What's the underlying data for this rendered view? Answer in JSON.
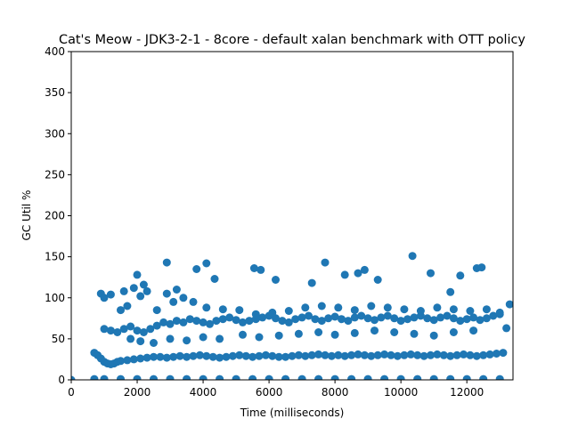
{
  "chart_data": {
    "type": "scatter",
    "title": "Cat's Meow - JDK3-2-1 - 8core -  default xalan benchmark with OTT policy",
    "xlabel": "Time (milliseconds)",
    "ylabel": "GC Util %",
    "xlim": [
      0,
      13400
    ],
    "ylim": [
      0,
      400
    ],
    "x_ticks": [
      0,
      2000,
      4000,
      6000,
      8000,
      10000,
      12000
    ],
    "y_ticks": [
      0,
      50,
      100,
      150,
      200,
      250,
      300,
      350,
      400
    ],
    "grid": false,
    "legend": "none",
    "color": "#1f77b4",
    "series": [
      {
        "points": [
          [
            0,
            0
          ],
          [
            700,
            33
          ],
          [
            800,
            30
          ],
          [
            900,
            26
          ],
          [
            1000,
            22
          ],
          [
            1100,
            20
          ],
          [
            1200,
            19
          ],
          [
            1300,
            20
          ],
          [
            1400,
            22
          ],
          [
            1500,
            23
          ],
          [
            1700,
            24
          ],
          [
            1900,
            25
          ],
          [
            2100,
            26
          ],
          [
            2300,
            27
          ],
          [
            2500,
            28
          ],
          [
            2700,
            28
          ],
          [
            2900,
            27
          ],
          [
            3100,
            28
          ],
          [
            3300,
            29
          ],
          [
            3500,
            28
          ],
          [
            3700,
            29
          ],
          [
            3900,
            30
          ],
          [
            4100,
            29
          ],
          [
            4300,
            28
          ],
          [
            4500,
            27
          ],
          [
            4700,
            28
          ],
          [
            4900,
            29
          ],
          [
            5100,
            30
          ],
          [
            5300,
            29
          ],
          [
            5500,
            28
          ],
          [
            5700,
            29
          ],
          [
            5900,
            30
          ],
          [
            6100,
            29
          ],
          [
            6300,
            28
          ],
          [
            6500,
            28
          ],
          [
            6700,
            29
          ],
          [
            6900,
            30
          ],
          [
            7100,
            29
          ],
          [
            7300,
            30
          ],
          [
            7500,
            31
          ],
          [
            7700,
            30
          ],
          [
            7900,
            29
          ],
          [
            8100,
            30
          ],
          [
            8300,
            29
          ],
          [
            8500,
            30
          ],
          [
            8700,
            31
          ],
          [
            8900,
            30
          ],
          [
            9100,
            29
          ],
          [
            9300,
            30
          ],
          [
            9500,
            31
          ],
          [
            9700,
            30
          ],
          [
            9900,
            29
          ],
          [
            10100,
            30
          ],
          [
            10300,
            31
          ],
          [
            10500,
            30
          ],
          [
            10700,
            29
          ],
          [
            10900,
            30
          ],
          [
            11100,
            31
          ],
          [
            11300,
            30
          ],
          [
            11500,
            29
          ],
          [
            11700,
            30
          ],
          [
            11900,
            31
          ],
          [
            12100,
            30
          ],
          [
            12300,
            29
          ],
          [
            12500,
            30
          ],
          [
            12700,
            31
          ],
          [
            12900,
            32
          ],
          [
            13100,
            33
          ],
          [
            1000,
            62
          ],
          [
            1200,
            60
          ],
          [
            1400,
            58
          ],
          [
            1600,
            62
          ],
          [
            1800,
            65
          ],
          [
            2000,
            60
          ],
          [
            2200,
            58
          ],
          [
            2400,
            62
          ],
          [
            2600,
            66
          ],
          [
            2800,
            70
          ],
          [
            3000,
            68
          ],
          [
            3200,
            72
          ],
          [
            3400,
            70
          ],
          [
            3600,
            74
          ],
          [
            3800,
            72
          ],
          [
            4000,
            70
          ],
          [
            4200,
            68
          ],
          [
            4400,
            72
          ],
          [
            4600,
            74
          ],
          [
            4800,
            76
          ],
          [
            5000,
            73
          ],
          [
            5200,
            70
          ],
          [
            5400,
            72
          ],
          [
            5600,
            74
          ],
          [
            5800,
            76
          ],
          [
            6000,
            78
          ],
          [
            6200,
            75
          ],
          [
            6400,
            72
          ],
          [
            6600,
            70
          ],
          [
            6800,
            74
          ],
          [
            7000,
            76
          ],
          [
            7200,
            78
          ],
          [
            7400,
            74
          ],
          [
            7600,
            72
          ],
          [
            7800,
            75
          ],
          [
            8000,
            77
          ],
          [
            8200,
            74
          ],
          [
            8400,
            72
          ],
          [
            8600,
            76
          ],
          [
            8800,
            78
          ],
          [
            9000,
            75
          ],
          [
            9200,
            73
          ],
          [
            9400,
            76
          ],
          [
            9600,
            78
          ],
          [
            9800,
            75
          ],
          [
            10000,
            72
          ],
          [
            10200,
            74
          ],
          [
            10400,
            76
          ],
          [
            10600,
            78
          ],
          [
            10800,
            75
          ],
          [
            11000,
            73
          ],
          [
            11200,
            76
          ],
          [
            11400,
            78
          ],
          [
            11600,
            75
          ],
          [
            11800,
            72
          ],
          [
            12000,
            74
          ],
          [
            12200,
            76
          ],
          [
            12400,
            73
          ],
          [
            12600,
            75
          ],
          [
            12800,
            78
          ],
          [
            13000,
            80
          ],
          [
            13300,
            92
          ],
          [
            1500,
            85
          ],
          [
            1700,
            90
          ],
          [
            2100,
            102
          ],
          [
            2300,
            108
          ],
          [
            2600,
            85
          ],
          [
            2900,
            105
          ],
          [
            3100,
            95
          ],
          [
            3400,
            100
          ],
          [
            3700,
            95
          ],
          [
            4100,
            88
          ],
          [
            4600,
            86
          ],
          [
            5100,
            85
          ],
          [
            5600,
            80
          ],
          [
            6100,
            82
          ],
          [
            6600,
            84
          ],
          [
            7100,
            88
          ],
          [
            7600,
            90
          ],
          [
            8100,
            88
          ],
          [
            8600,
            85
          ],
          [
            9100,
            90
          ],
          [
            9600,
            88
          ],
          [
            10100,
            86
          ],
          [
            10600,
            84
          ],
          [
            11100,
            88
          ],
          [
            11600,
            86
          ],
          [
            12100,
            84
          ],
          [
            12600,
            86
          ],
          [
            13000,
            82
          ],
          [
            900,
            105
          ],
          [
            1000,
            100
          ],
          [
            1200,
            104
          ],
          [
            1600,
            108
          ],
          [
            1900,
            112
          ],
          [
            2000,
            128
          ],
          [
            2200,
            116
          ],
          [
            2900,
            143
          ],
          [
            3200,
            110
          ],
          [
            3800,
            135
          ],
          [
            4100,
            142
          ],
          [
            4350,
            123
          ],
          [
            5550,
            136
          ],
          [
            5750,
            134
          ],
          [
            6200,
            122
          ],
          [
            7300,
            118
          ],
          [
            7700,
            143
          ],
          [
            8300,
            128
          ],
          [
            8700,
            130
          ],
          [
            8900,
            134
          ],
          [
            9300,
            122
          ],
          [
            10350,
            151
          ],
          [
            10900,
            130
          ],
          [
            11500,
            107
          ],
          [
            11800,
            127
          ],
          [
            12300,
            136
          ],
          [
            12450,
            137
          ],
          [
            1800,
            50
          ],
          [
            2100,
            47
          ],
          [
            2500,
            45
          ],
          [
            3000,
            50
          ],
          [
            3500,
            48
          ],
          [
            4000,
            52
          ],
          [
            4500,
            50
          ],
          [
            5200,
            55
          ],
          [
            5700,
            52
          ],
          [
            6300,
            54
          ],
          [
            6900,
            56
          ],
          [
            7500,
            58
          ],
          [
            8000,
            55
          ],
          [
            8600,
            57
          ],
          [
            9200,
            60
          ],
          [
            9800,
            58
          ],
          [
            10400,
            56
          ],
          [
            11000,
            54
          ],
          [
            11600,
            58
          ],
          [
            12200,
            60
          ],
          [
            13200,
            63
          ],
          [
            700,
            1
          ],
          [
            1000,
            1
          ],
          [
            1500,
            1
          ],
          [
            2000,
            1
          ],
          [
            2500,
            1
          ],
          [
            3000,
            1
          ],
          [
            3500,
            1
          ],
          [
            4000,
            1
          ],
          [
            4500,
            1
          ],
          [
            5000,
            1
          ],
          [
            5500,
            1
          ],
          [
            6000,
            1
          ],
          [
            6500,
            1
          ],
          [
            7000,
            1
          ],
          [
            7500,
            1
          ],
          [
            8000,
            1
          ],
          [
            8500,
            1
          ],
          [
            9000,
            1
          ],
          [
            9500,
            1
          ],
          [
            10000,
            1
          ],
          [
            10500,
            1
          ],
          [
            11000,
            1
          ],
          [
            11500,
            1
          ],
          [
            12000,
            1
          ],
          [
            12500,
            1
          ],
          [
            13000,
            1
          ]
        ]
      }
    ]
  }
}
